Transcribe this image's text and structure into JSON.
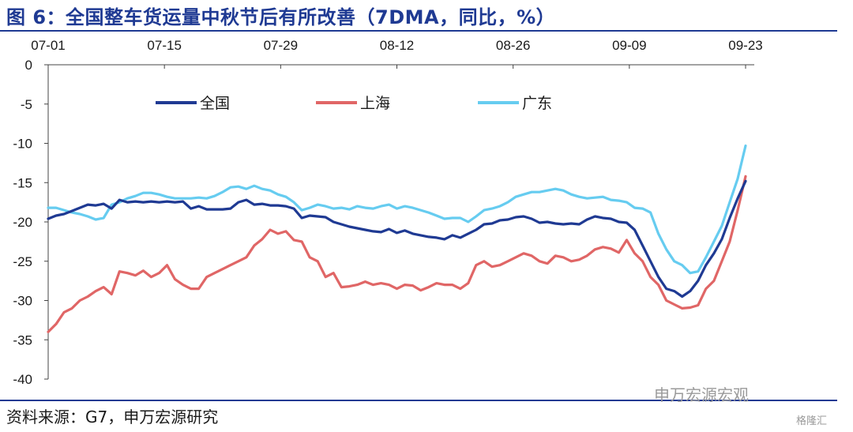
{
  "header": {
    "title": "图 6：全国整车货运量中秋节后有所改善（7DMA，同比，%）"
  },
  "footer": {
    "source": "资料来源：G7，申万宏源研究",
    "watermark": "申万宏源宏观",
    "watermark_small": "格隆汇"
  },
  "chart_data": {
    "type": "line",
    "title": "图 6：全国整车货运量中秋节后有所改善（7DMA，同比，%）",
    "xlabel": "",
    "ylabel": "",
    "x_ticks": [
      "07-01",
      "07-15",
      "07-29",
      "08-12",
      "08-26",
      "09-09",
      "09-23"
    ],
    "x_tick_days": [
      0,
      14,
      28,
      42,
      56,
      70,
      84
    ],
    "x_start": "07-01",
    "x_end": "09-24",
    "ylim": [
      -40,
      0
    ],
    "y_ticks": [
      0,
      -5,
      -10,
      -15,
      -20,
      -25,
      -30,
      -35,
      -40
    ],
    "x_axis_position": "top",
    "grid": false,
    "legend": "top-center",
    "colors": {
      "全国": "#1f3a93",
      "上海": "#e06666",
      "广东": "#66ccf0"
    },
    "series": [
      {
        "name": "全国",
        "values": [
          -19.6,
          -19.2,
          -19.0,
          -18.6,
          -18.2,
          -17.8,
          -17.9,
          -17.7,
          -18.3,
          -17.2,
          -17.5,
          -17.4,
          -17.5,
          -17.4,
          -17.5,
          -17.4,
          -17.5,
          -17.4,
          -18.3,
          -18.0,
          -18.4,
          -18.4,
          -18.4,
          -18.3,
          -17.5,
          -17.2,
          -17.8,
          -17.7,
          -17.9,
          -17.9,
          -18.0,
          -18.3,
          -19.5,
          -19.2,
          -19.3,
          -19.4,
          -20.0,
          -20.3,
          -20.6,
          -20.8,
          -21.0,
          -21.2,
          -21.3,
          -20.9,
          -21.4,
          -21.1,
          -21.5,
          -21.7,
          -21.9,
          -22.0,
          -22.2,
          -21.7,
          -22.0,
          -21.5,
          -21.0,
          -20.3,
          -20.2,
          -19.8,
          -19.7,
          -19.4,
          -19.3,
          -19.6,
          -20.1,
          -20.0,
          -20.2,
          -20.3,
          -20.2,
          -20.3,
          -19.7,
          -19.3,
          -19.5,
          -19.6,
          -20.0,
          -20.1,
          -21.0,
          -23.0,
          -25.0,
          -27.0,
          -28.5,
          -28.8,
          -29.5,
          -28.8,
          -27.5,
          -25.5,
          -24.0,
          -22.2,
          -19.5,
          -17.0,
          -14.8
        ],
        "x_days": []
      },
      {
        "name": "上海",
        "values": [
          -34.0,
          -33.0,
          -31.5,
          -31.0,
          -30.0,
          -29.5,
          -28.8,
          -28.3,
          -29.2,
          -26.3,
          -26.5,
          -26.8,
          -26.2,
          -27.0,
          -26.5,
          -25.5,
          -27.3,
          -28.0,
          -28.5,
          -28.5,
          -27.0,
          -26.5,
          -26.0,
          -25.5,
          -25.0,
          -24.5,
          -23.0,
          -22.2,
          -21.0,
          -21.5,
          -21.2,
          -22.3,
          -22.5,
          -24.5,
          -25.0,
          -27.0,
          -26.5,
          -28.3,
          -28.2,
          -28.0,
          -27.6,
          -28.0,
          -27.8,
          -28.0,
          -28.5,
          -28.0,
          -28.1,
          -28.7,
          -28.3,
          -27.8,
          -28.0,
          -28.0,
          -28.5,
          -27.8,
          -25.5,
          -25.0,
          -25.7,
          -25.5,
          -25.0,
          -24.5,
          -24.0,
          -24.3,
          -25.0,
          -25.3,
          -24.3,
          -24.5,
          -25.0,
          -24.8,
          -24.3,
          -23.5,
          -23.2,
          -23.4,
          -23.9,
          -22.3,
          -24.0,
          -25.0,
          -27.0,
          -28.0,
          -30.0,
          -30.5,
          -31.0,
          -30.9,
          -30.6,
          -28.5,
          -27.5,
          -25.0,
          -22.5,
          -18.5,
          -14.2
        ]
      },
      {
        "name": "广东",
        "values": [
          -18.2,
          -18.2,
          -18.5,
          -18.8,
          -19.0,
          -19.3,
          -19.7,
          -19.5,
          -17.8,
          -17.5,
          -17.0,
          -16.7,
          -16.3,
          -16.3,
          -16.5,
          -16.8,
          -17.0,
          -17.0,
          -17.0,
          -16.9,
          -17.0,
          -16.7,
          -16.2,
          -15.6,
          -15.5,
          -15.8,
          -15.4,
          -15.8,
          -16.0,
          -16.5,
          -16.8,
          -17.5,
          -18.5,
          -18.2,
          -17.8,
          -18.0,
          -18.3,
          -18.2,
          -18.4,
          -18.0,
          -18.2,
          -18.3,
          -18.0,
          -17.8,
          -18.3,
          -18.0,
          -18.2,
          -18.5,
          -18.8,
          -19.2,
          -19.6,
          -19.5,
          -19.5,
          -20.0,
          -19.3,
          -18.5,
          -18.3,
          -18.0,
          -17.5,
          -16.8,
          -16.5,
          -16.2,
          -16.2,
          -16.0,
          -15.8,
          -16.0,
          -16.5,
          -16.8,
          -17.0,
          -16.9,
          -16.8,
          -17.2,
          -17.3,
          -17.5,
          -18.2,
          -18.3,
          -18.8,
          -21.5,
          -23.5,
          -25.0,
          -25.5,
          -26.5,
          -26.3,
          -24.5,
          -22.5,
          -20.5,
          -17.5,
          -14.5,
          -10.3
        ]
      }
    ]
  }
}
